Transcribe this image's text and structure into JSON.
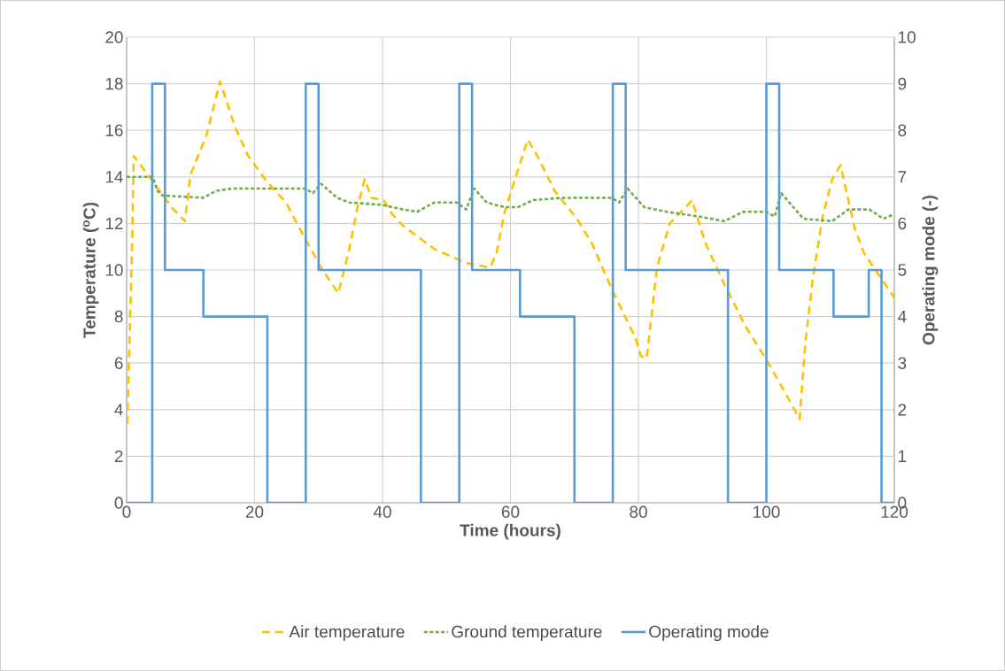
{
  "chart_data": {
    "type": "line",
    "xlabel": "Time (hours)",
    "ylabel": "Temperature ($^{o}$C)",
    "y2label": "Operating mode (-)",
    "xlim": [
      0,
      120
    ],
    "xticks": [
      0,
      20,
      40,
      60,
      80,
      100,
      120
    ],
    "ylim": [
      0,
      20
    ],
    "yticks": [
      0,
      2,
      4,
      6,
      8,
      10,
      12,
      14,
      16,
      18,
      20
    ],
    "y2lim": [
      0,
      10
    ],
    "y2ticks": [
      0,
      1,
      2,
      3,
      4,
      5,
      6,
      7,
      8,
      9,
      10
    ],
    "grid": true,
    "legend": "bottom",
    "series": [
      {
        "name": "Air temperature",
        "color": "#ffc000",
        "line_style": "dashed",
        "x": [
          0.1,
          0.85,
          1.1,
          4.1,
          7.0,
          9.1,
          10.0,
          12.5,
          14.6,
          17.0,
          19.0,
          21.9,
          24.9,
          27.4,
          30.4,
          33.1,
          34.8,
          36.1,
          37.2,
          38.3,
          40.2,
          41.5,
          43.2,
          48.1,
          53.1,
          56.8,
          57.8,
          59.0,
          60.7,
          62.7,
          64.4,
          66.9,
          70.4,
          72.8,
          75.8,
          79.5,
          80.4,
          81.3,
          82.9,
          84.9,
          87.4,
          88.4,
          90.4,
          93.4,
          96.9,
          99.9,
          102.8,
          105.2,
          106.1,
          107.3,
          108.8,
          110.3,
          111.6,
          113.8,
          115.3,
          117.8,
          120.0
        ],
        "values": [
          3.4,
          10.9,
          14.9,
          13.8,
          12.7,
          12.1,
          14.1,
          15.8,
          18.1,
          16.1,
          14.9,
          13.8,
          12.9,
          11.6,
          10.1,
          9.0,
          10.9,
          12.7,
          13.9,
          13.1,
          13.0,
          12.4,
          11.9,
          10.9,
          10.3,
          10.1,
          10.7,
          12.4,
          13.9,
          15.6,
          14.8,
          13.4,
          12.2,
          11.1,
          9.2,
          7.1,
          6.3,
          6.2,
          10.1,
          12.0,
          12.7,
          13.0,
          11.2,
          9.4,
          7.5,
          6.2,
          4.8,
          3.6,
          6.9,
          9.7,
          12.3,
          13.9,
          14.5,
          11.8,
          10.7,
          9.7,
          8.8
        ]
      },
      {
        "name": "Ground temperature",
        "color": "#70ad47",
        "line_style": "dotted",
        "x": [
          0,
          4.1,
          4.8,
          5.6,
          12.0,
          14.0,
          16.5,
          27.9,
          29.1,
          30.4,
          32.9,
          34.8,
          39.8,
          43.2,
          45.4,
          48.1,
          51.6,
          53.1,
          54.3,
          56.3,
          59.0,
          61.2,
          63.5,
          67.9,
          75.8,
          77.0,
          78.3,
          80.9,
          84.4,
          89.4,
          93.4,
          96.4,
          99.9,
          101.3,
          102.3,
          105.8,
          110.3,
          112.8,
          116.1,
          118.3,
          120.0
        ],
        "values": [
          14.0,
          14.0,
          13.4,
          13.2,
          13.1,
          13.4,
          13.5,
          13.5,
          13.3,
          13.7,
          13.1,
          12.9,
          12.8,
          12.6,
          12.5,
          12.9,
          12.9,
          12.6,
          13.5,
          12.9,
          12.7,
          12.7,
          13.0,
          13.1,
          13.1,
          12.9,
          13.5,
          12.7,
          12.5,
          12.3,
          12.1,
          12.5,
          12.5,
          12.3,
          13.3,
          12.2,
          12.1,
          12.6,
          12.6,
          12.2,
          12.4
        ]
      },
      {
        "name": "Operating mode",
        "color": "#5b9bd5",
        "line_style": "solid",
        "axis": "y2",
        "x": [
          0,
          4,
          4,
          6,
          6,
          12,
          12,
          22,
          22,
          28,
          28,
          30,
          30,
          46,
          46,
          52,
          52,
          54,
          54,
          61.5,
          61.5,
          70,
          70,
          76,
          76,
          78,
          78,
          94,
          94,
          100,
          100,
          102,
          102,
          110.5,
          110.5,
          116,
          116,
          118,
          118,
          120
        ],
        "values": [
          0,
          0,
          9,
          9,
          5,
          5,
          4,
          4,
          0,
          0,
          9,
          9,
          5,
          5,
          0,
          0,
          9,
          9,
          5,
          5,
          4,
          4,
          0,
          0,
          9,
          9,
          5,
          5,
          0,
          0,
          9,
          9,
          5,
          5,
          4,
          4,
          5,
          5,
          0,
          0
        ]
      }
    ]
  }
}
